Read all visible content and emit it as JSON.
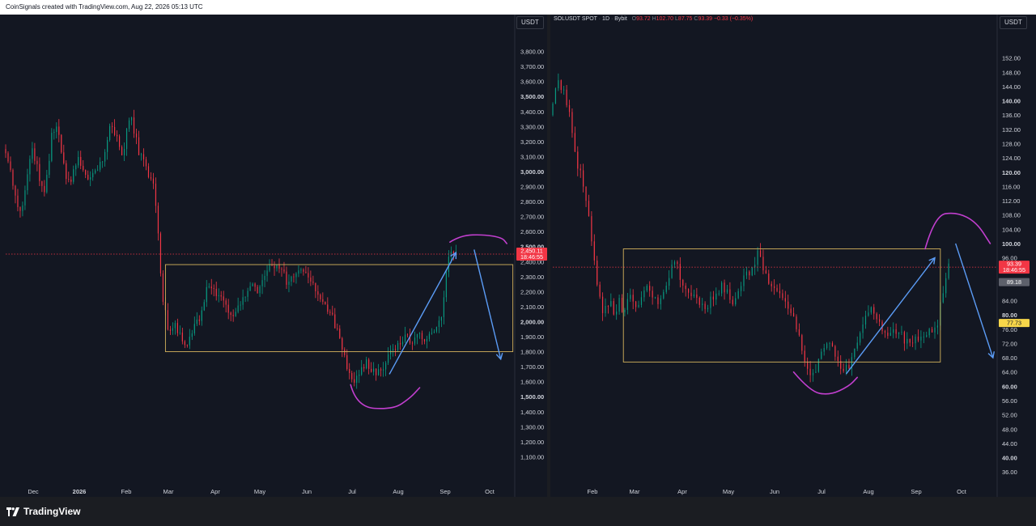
{
  "header": {
    "text": "CoinSignals created with TradingView.com, Aug 22, 2026 05:13 UTC"
  },
  "footer": {
    "brand": "TradingView",
    "logo_icon": "tradingview-logo-icon"
  },
  "colors": {
    "up": "#089981",
    "down": "#f23645",
    "box": "#d4b25c",
    "arrow": "#5b9cf6",
    "arc": "#c23fcf",
    "price_tag": "#f23645",
    "yellow_tag": "#f7d64a"
  },
  "chart_data": [
    {
      "type": "candlestick",
      "unit_label": "USDT",
      "ylim": [
        1000,
        3900
      ],
      "y_ticks": [
        "3,800.00",
        "3,700.00",
        "3,600.00",
        "3,500.00",
        "3,400.00",
        "3,300.00",
        "3,200.00",
        "3,100.00",
        "3,000.00",
        "2,900.00",
        "2,800.00",
        "2,700.00",
        "2,600.00",
        "2,500.00",
        "2,400.00",
        "2,300.00",
        "2,200.00",
        "2,100.00",
        "2,000.00",
        "1,900.00",
        "1,800.00",
        "1,700.00",
        "1,600.00",
        "1,500.00",
        "1,400.00",
        "1,300.00",
        "1,200.00",
        "1,100.00"
      ],
      "y_tick_values": [
        3800,
        3700,
        3600,
        3500,
        3400,
        3300,
        3200,
        3100,
        3000,
        2900,
        2800,
        2700,
        2600,
        2500,
        2400,
        2300,
        2200,
        2100,
        2000,
        1900,
        1800,
        1700,
        1600,
        1500,
        1400,
        1300,
        1200,
        1100
      ],
      "bold_ticks": [
        "3,500.00",
        "3,000.00",
        "2,500.00",
        "2,000.00",
        "1,500.00"
      ],
      "x_labels": [
        "Dec",
        "2026",
        "Feb",
        "Mar",
        "Apr",
        "May",
        "Jun",
        "Jul",
        "Aug",
        "Sep",
        "Oct"
      ],
      "bold_x_labels": [
        "2026"
      ],
      "price_label": {
        "price": "2,450.11",
        "countdown": "18:46:55",
        "value": 2450.11
      },
      "price_path": [
        [
          0,
          3150
        ],
        [
          3,
          3100
        ],
        [
          6,
          3020
        ],
        [
          9,
          2870
        ],
        [
          13,
          2700
        ],
        [
          16,
          2790
        ],
        [
          20,
          3000
        ],
        [
          24,
          3160
        ],
        [
          27,
          3060
        ],
        [
          30,
          2950
        ],
        [
          33,
          2850
        ],
        [
          36,
          2960
        ],
        [
          40,
          3230
        ],
        [
          44,
          3300
        ],
        [
          47,
          3180
        ],
        [
          50,
          3050
        ],
        [
          53,
          2920
        ],
        [
          56,
          2920
        ],
        [
          59,
          3020
        ],
        [
          62,
          3100
        ],
        [
          65,
          3050
        ],
        [
          68,
          2960
        ],
        [
          72,
          2960
        ],
        [
          76,
          3000
        ],
        [
          79,
          3050
        ],
        [
          83,
          3090
        ],
        [
          86,
          3190
        ],
        [
          89,
          3330
        ],
        [
          93,
          3250
        ],
        [
          96,
          3140
        ],
        [
          99,
          3070
        ],
        [
          102,
          3280
        ],
        [
          105,
          3360
        ],
        [
          108,
          3280
        ],
        [
          112,
          3130
        ],
        [
          115,
          3100
        ],
        [
          117,
          3050
        ],
        [
          119,
          3010
        ],
        [
          121,
          2950
        ],
        [
          123,
          2970
        ],
        [
          125,
          2880
        ],
        [
          127,
          2720
        ],
        [
          129,
          2450
        ],
        [
          131,
          2210
        ],
        [
          134,
          2050
        ],
        [
          137,
          1920
        ],
        [
          140,
          1980
        ],
        [
          143,
          1960
        ],
        [
          146,
          1900
        ],
        [
          149,
          1880
        ],
        [
          152,
          1850
        ],
        [
          155,
          1900
        ],
        [
          158,
          1960
        ],
        [
          161,
          2000
        ],
        [
          164,
          2080
        ],
        [
          167,
          2190
        ],
        [
          171,
          2250
        ],
        [
          175,
          2190
        ],
        [
          179,
          2170
        ],
        [
          183,
          2110
        ],
        [
          187,
          2020
        ],
        [
          191,
          2050
        ],
        [
          195,
          2110
        ],
        [
          199,
          2170
        ],
        [
          203,
          2250
        ],
        [
          207,
          2250
        ],
        [
          211,
          2200
        ],
        [
          215,
          2280
        ],
        [
          219,
          2360
        ],
        [
          223,
          2370
        ],
        [
          227,
          2380
        ],
        [
          231,
          2330
        ],
        [
          235,
          2250
        ],
        [
          239,
          2300
        ],
        [
          243,
          2360
        ],
        [
          247,
          2350
        ],
        [
          251,
          2310
        ],
        [
          255,
          2260
        ],
        [
          259,
          2200
        ],
        [
          263,
          2160
        ],
        [
          267,
          2100
        ],
        [
          271,
          2040
        ],
        [
          275,
          1960
        ],
        [
          279,
          1860
        ],
        [
          283,
          1720
        ],
        [
          287,
          1640
        ],
        [
          291,
          1600
        ],
        [
          295,
          1660
        ],
        [
          299,
          1730
        ],
        [
          303,
          1700
        ],
        [
          307,
          1650
        ],
        [
          311,
          1660
        ],
        [
          315,
          1720
        ],
        [
          319,
          1770
        ],
        [
          323,
          1820
        ],
        [
          327,
          1860
        ],
        [
          331,
          1900
        ],
        [
          335,
          1880
        ],
        [
          339,
          1870
        ],
        [
          343,
          1920
        ],
        [
          347,
          1880
        ],
        [
          351,
          1900
        ],
        [
          355,
          1930
        ],
        [
          359,
          1970
        ],
        [
          363,
          2040
        ],
        [
          366,
          2340
        ],
        [
          368,
          2420
        ],
        [
          370,
          2490
        ],
        [
          372,
          2450
        ]
      ],
      "box": {
        "x0": 132,
        "x1": 419,
        "y0": 2380,
        "y1": 1800
      },
      "arrows": [
        {
          "from": [
            317,
            1650
          ],
          "to": [
            372,
            2460
          ]
        },
        {
          "from": [
            387,
            2480
          ],
          "to": [
            409,
            1750
          ]
        }
      ],
      "arcs": [
        {
          "points": [
            [
              285,
              1580
            ],
            [
              290,
              1430
            ],
            [
              320,
              1415
            ],
            [
              334,
              1490
            ],
            [
              342,
              1560
            ]
          ]
        },
        {
          "points": [
            [
              367,
              2530
            ],
            [
              376,
              2575
            ],
            [
              395,
              2580
            ],
            [
              410,
              2560
            ],
            [
              414,
              2520
            ]
          ]
        }
      ],
      "x_range": [
        0,
        450
      ]
    },
    {
      "type": "candlestick",
      "unit_label": "USDT",
      "legend": {
        "symbol": "SOLUSDT SPOT",
        "interval": "1D",
        "exchange": "Bybit",
        "o_label": "O",
        "o": "93.72",
        "h_label": "H",
        "h": "102.70",
        "l_label": "L",
        "l": "87.75",
        "c_label": "C",
        "c": "93.39",
        "change": "−0.33 (−0.35%)"
      },
      "ylim": [
        34,
        156
      ],
      "y_ticks": [
        "152.00",
        "148.00",
        "144.00",
        "140.00",
        "136.00",
        "132.00",
        "128.00",
        "124.00",
        "120.00",
        "116.00",
        "112.00",
        "108.00",
        "104.00",
        "100.00",
        "96.00",
        "84.00",
        "80.00",
        "76.00",
        "72.00",
        "68.00",
        "64.00",
        "60.00",
        "56.00",
        "52.00",
        "48.00",
        "44.00",
        "40.00",
        "36.00"
      ],
      "y_tick_values": [
        152,
        148,
        144,
        140,
        136,
        132,
        128,
        124,
        120,
        116,
        112,
        108,
        104,
        100,
        96,
        84,
        80,
        76,
        72,
        68,
        64,
        60,
        56,
        52,
        48,
        44,
        40,
        36
      ],
      "bold_ticks": [
        "140.00",
        "120.00",
        "100.00",
        "80.00",
        "60.00",
        "40.00"
      ],
      "x_labels": [
        "Feb",
        "Mar",
        "Apr",
        "May",
        "Jun",
        "Jul",
        "Aug",
        "Sep",
        "Oct"
      ],
      "price_label": {
        "price": "93.39",
        "countdown": "18:46:55",
        "value": 93.39
      },
      "extra_labels": [
        {
          "text": "89.18",
          "value": 89.18,
          "style": "grey"
        },
        {
          "text": "77.73",
          "value": 77.73,
          "style": "yellow"
        }
      ],
      "price_path": [
        [
          0,
          136
        ],
        [
          3,
          142
        ],
        [
          6,
          146
        ],
        [
          8,
          144
        ],
        [
          10,
          142
        ],
        [
          13,
          138
        ],
        [
          16,
          132
        ],
        [
          18,
          125
        ],
        [
          20,
          122
        ],
        [
          23,
          118
        ],
        [
          26,
          112
        ],
        [
          29,
          104
        ],
        [
          32,
          95
        ],
        [
          35,
          86
        ],
        [
          38,
          80
        ],
        [
          41,
          82
        ],
        [
          44,
          84
        ],
        [
          47,
          80
        ],
        [
          50,
          84
        ],
        [
          53,
          80
        ],
        [
          56,
          84
        ],
        [
          59,
          86
        ],
        [
          62,
          82
        ],
        [
          65,
          84
        ],
        [
          68,
          86
        ],
        [
          71,
          88
        ],
        [
          74,
          86
        ],
        [
          78,
          82
        ],
        [
          82,
          86
        ],
        [
          86,
          90
        ],
        [
          90,
          96
        ],
        [
          93,
          92
        ],
        [
          96,
          88
        ],
        [
          100,
          86
        ],
        [
          104,
          86
        ],
        [
          108,
          84
        ],
        [
          112,
          82
        ],
        [
          116,
          84
        ],
        [
          120,
          86
        ],
        [
          124,
          88
        ],
        [
          128,
          86
        ],
        [
          132,
          84
        ],
        [
          136,
          86
        ],
        [
          140,
          90
        ],
        [
          144,
          92
        ],
        [
          148,
          95
        ],
        [
          151,
          98
        ],
        [
          154,
          93
        ],
        [
          157,
          90
        ],
        [
          160,
          88
        ],
        [
          164,
          86
        ],
        [
          168,
          84
        ],
        [
          172,
          82
        ],
        [
          176,
          79
        ],
        [
          180,
          74
        ],
        [
          184,
          68
        ],
        [
          188,
          63
        ],
        [
          192,
          65
        ],
        [
          196,
          69
        ],
        [
          200,
          72
        ],
        [
          204,
          71
        ],
        [
          208,
          67
        ],
        [
          212,
          64
        ],
        [
          216,
          66
        ],
        [
          220,
          70
        ],
        [
          224,
          76
        ],
        [
          228,
          80
        ],
        [
          232,
          82
        ],
        [
          236,
          79
        ],
        [
          240,
          76
        ],
        [
          244,
          75
        ],
        [
          248,
          76
        ],
        [
          252,
          75
        ],
        [
          256,
          73
        ],
        [
          260,
          72
        ],
        [
          264,
          73
        ],
        [
          268,
          74
        ],
        [
          272,
          75
        ],
        [
          276,
          75
        ],
        [
          279,
          76
        ],
        [
          281,
          80
        ],
        [
          283,
          85
        ],
        [
          285,
          89
        ],
        [
          287,
          93.4
        ]
      ],
      "box": {
        "x0": 51,
        "x1": 280,
        "y0": 98.5,
        "y1": 66.8
      },
      "arrows": [
        {
          "from": [
            212,
            63.5
          ],
          "to": [
            276,
            96
          ]
        },
        {
          "from": [
            291,
            100
          ],
          "to": [
            318,
            68
          ]
        }
      ],
      "arcs": [
        {
          "points": [
            [
              174,
              64
            ],
            [
              186,
              58.5
            ],
            [
              200,
              57.5
            ],
            [
              214,
              60
            ],
            [
              220,
              62.5
            ]
          ]
        },
        {
          "points": [
            [
              269,
              98.5
            ],
            [
              276,
              108
            ],
            [
              292,
              108.8
            ],
            [
              306,
              106
            ],
            [
              316,
              100
            ]
          ]
        }
      ],
      "x_range": [
        0,
        345
      ]
    }
  ]
}
